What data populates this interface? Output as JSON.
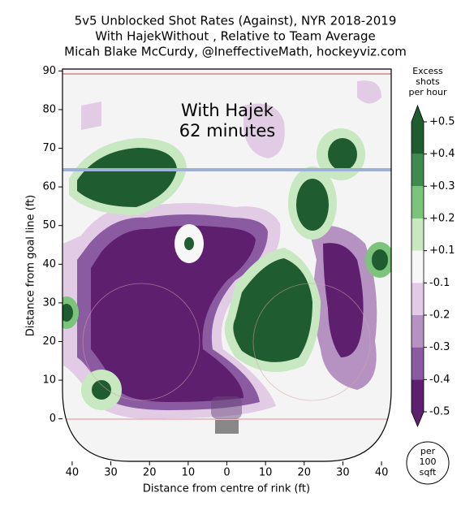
{
  "chart_data": {
    "type": "contour",
    "title": [
      "5v5 Unblocked Shot Rates (Against), NYR 2018-2019",
      "With HajekWithout , Relative to Team Average",
      "Micah Blake McCurdy, @IneffectiveMath, hockeyviz.com"
    ],
    "annotation": [
      "With Hajek",
      "62 minutes"
    ],
    "xlabel": "Distance from centre of rink (ft)",
    "ylabel": "Distance from goal line (ft)",
    "xlim": [
      -42.5,
      42.5
    ],
    "ylim": [
      -11,
      90.5
    ],
    "xticks": [
      {
        "value": -40,
        "label": "40"
      },
      {
        "value": -30,
        "label": "30"
      },
      {
        "value": -20,
        "label": "20"
      },
      {
        "value": -10,
        "label": "10"
      },
      0,
      10,
      20,
      30,
      40
    ],
    "yticks": [
      0,
      10,
      20,
      30,
      40,
      50,
      60,
      70,
      80,
      90
    ],
    "colorbar": {
      "title": [
        "Excess",
        "shots",
        "per hour"
      ],
      "ticks": [
        {
          "value": 0.5,
          "label": "+0.5"
        },
        {
          "value": 0.4,
          "label": "+0.4"
        },
        {
          "value": 0.3,
          "label": "+0.3"
        },
        {
          "value": 0.2,
          "label": "+0.2"
        },
        {
          "value": 0.1,
          "label": "+0.1"
        },
        -0.1,
        -0.2,
        -0.3,
        -0.4,
        -0.5
      ],
      "colors": [
        "#1f5c30",
        "#3d8b4e",
        "#7cc47b",
        "#c8e8c1",
        "#f7f7f7",
        "#e2cbe5",
        "#b592c2",
        "#8b5ba2",
        "#5e1f6f"
      ]
    },
    "unit_note": [
      "per",
      "100",
      "sqft"
    ]
  }
}
